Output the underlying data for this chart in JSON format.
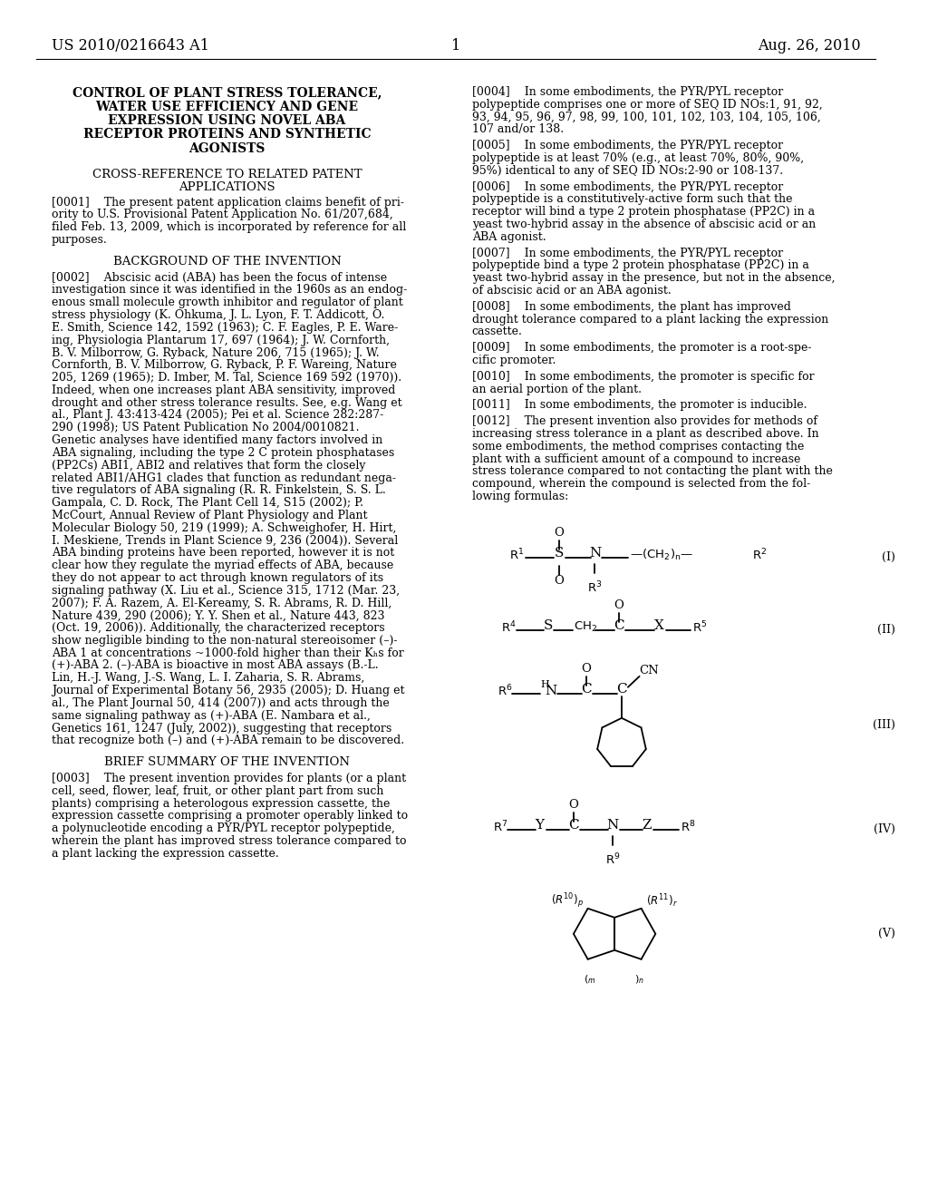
{
  "bg_color": "#ffffff",
  "page_number": "1",
  "header_left": "US 2010/0216643 A1",
  "header_right": "Aug. 26, 2010",
  "title_line1": "CONTROL OF PLANT STRESS TOLERANCE,",
  "title_line2": "WATER USE EFFICIENCY AND GENE",
  "title_line3": "EXPRESSION USING NOVEL ABA",
  "title_line4": "RECEPTOR PROTEINS AND SYNTHETIC",
  "title_line5": "AGONISTS",
  "section1_line1": "CROSS-REFERENCE TO RELATED PATENT",
  "section1_line2": "APPLICATIONS",
  "para0001": "[0001]    The present patent application claims benefit of pri-\nority to U.S. Provisional Patent Application No. 61/207,684,\nfiled Feb. 13, 2009, which is incorporated by reference for all\npurposes.",
  "section2": "BACKGROUND OF THE INVENTION",
  "para0002_line1": "[0002]    Abscisic acid (ABA) has been the focus of intense",
  "para0002_line2": "investigation since it was identified in the 1960s as an endog-",
  "para0002_line3": "enous small molecule growth inhibitor and regulator of plant",
  "para0002_line4": "stress physiology (K. Ohkuma, J. L. Lyon, F. T. Addicott, O.",
  "para0002_line5": "E. Smith, Science 142, 1592 (1963); C. F. Eagles, P. E. Ware-",
  "para0002_line6": "ing, Physiologia Plantarum 17, 697 (1964); J. W. Cornforth,",
  "para0002_line7": "B. V. Milborrow, G. Ryback, Nature 206, 715 (1965); J. W.",
  "para0002_line8": "Cornforth, B. V. Milborrow, G. Ryback, P. F. Wareing, Nature",
  "para0002_line9": "205, 1269 (1965); D. Imber, M. Tal, Science 169 592 (1970)).",
  "para0002_line10": "Indeed, when one increases plant ABA sensitivity, improved",
  "para0002_line11": "drought and other stress tolerance results. See, e.g. Wang et",
  "para0002_line12": "al., Plant J. 43:413-424 (2005); Pei et al. Science 282:287-",
  "para0002_line13": "290 (1998); US Patent Publication No 2004/0010821.",
  "para0002_line14": "Genetic analyses have identified many factors involved in",
  "para0002_line15": "ABA signaling, including the type 2 C protein phosphatases",
  "para0002_line16": "(PP2Cs) ABI1, ABI2 and relatives that form the closely",
  "para0002_line17": "related ABI1/AHG1 clades that function as redundant nega-",
  "para0002_line18": "tive regulators of ABA signaling (R. R. Finkelstein, S. S. L.",
  "para0002_line19": "Gampala, C. D. Rock, The Plant Cell 14, S15 (2002); P.",
  "para0002_line20": "McCourt, Annual Review of Plant Physiology and Plant",
  "para0002_line21": "Molecular Biology 50, 219 (1999); A. Schweighofer, H. Hirt,",
  "para0002_line22": "I. Meskiene, Trends in Plant Science 9, 236 (2004)). Several",
  "para0002_line23": "ABA binding proteins have been reported, however it is not",
  "para0002_line24": "clear how they regulate the myriad effects of ABA, because",
  "para0002_line25": "they do not appear to act through known regulators of its",
  "para0002_line26": "signaling pathway (X. Liu et al., Science 315, 1712 (Mar. 23,",
  "para0002_line27": "2007); F. A. Razem, A. El-Kereamy, S. R. Abrams, R. D. Hill,",
  "para0002_line28": "Nature 439, 290 (2006); Y. Y. Shen et al., Nature 443, 823",
  "para0002_line29": "(Oct. 19, 2006)). Additionally, the characterized receptors",
  "para0002_line30": "show negligible binding to the non-natural stereoisomer (–)-",
  "para0002_line31": "ABA 1 at concentrations ~1000-fold higher than their Kₕs for",
  "para0002_line32": "(+)-ABA 2. (–)-ABA is bioactive in most ABA assays (B.-L.",
  "para0002_line33": "Lin, H.-J. Wang, J.-S. Wang, L. I. Zaharia, S. R. Abrams,",
  "para0002_line34": "Journal of Experimental Botany 56, 2935 (2005); D. Huang et",
  "para0002_line35": "al., The Plant Journal 50, 414 (2007)) and acts through the",
  "para0002_line36": "same signaling pathway as (+)-ABA (E. Nambara et al.,",
  "para0002_line37": "Genetics 161, 1247 (July, 2002)), suggesting that receptors",
  "para0002_line38": "that recognize both (–) and (+)-ABA remain to be discovered.",
  "section3": "BRIEF SUMMARY OF THE INVENTION",
  "para0003_line1": "[0003]    The present invention provides for plants (or a plant",
  "para0003_line2": "cell, seed, flower, leaf, fruit, or other plant part from such",
  "para0003_line3": "plants) comprising a heterologous expression cassette, the",
  "para0003_line4": "expression cassette comprising a promoter operably linked to",
  "para0003_line5": "a polynucleotide encoding a PYR/PYL receptor polypeptide,",
  "para0003_line6": "wherein the plant has improved stress tolerance compared to",
  "para0003_line7": "a plant lacking the expression cassette.",
  "para0004_line1": "[0004]    In some embodiments, the PYR/PYL receptor",
  "para0004_line2": "polypeptide comprises one or more of SEQ ID NOs:1, 91, 92,",
  "para0004_line3": "93, 94, 95, 96, 97, 98, 99, 100, 101, 102, 103, 104, 105, 106,",
  "para0004_line4": "107 and/or 138.",
  "para0005_line1": "[0005]    In some embodiments, the PYR/PYL receptor",
  "para0005_line2": "polypeptide is at least 70% (e.g., at least 70%, 80%, 90%,",
  "para0005_line3": "95%) identical to any of SEQ ID NOs:2-90 or 108-137.",
  "para0006_line1": "[0006]    In some embodiments, the PYR/PYL receptor",
  "para0006_line2": "polypeptide is a constitutively-active form such that the",
  "para0006_line3": "receptor will bind a type 2 protein phosphatase (PP2C) in a",
  "para0006_line4": "yeast two-hybrid assay in the absence of abscisic acid or an",
  "para0006_line5": "ABA agonist.",
  "para0007_line1": "[0007]    In some embodiments, the PYR/PYL receptor",
  "para0007_line2": "polypeptide bind a type 2 protein phosphatase (PP2C) in a",
  "para0007_line3": "yeast two-hybrid assay in the presence, but not in the absence,",
  "para0007_line4": "of abscisic acid or an ABA agonist.",
  "para0008_line1": "[0008]    In some embodiments, the plant has improved",
  "para0008_line2": "drought tolerance compared to a plant lacking the expression",
  "para0008_line3": "cassette.",
  "para0009_line1": "[0009]    In some embodiments, the promoter is a root-spe-",
  "para0009_line2": "cific promoter.",
  "para0010_line1": "[0010]    In some embodiments, the promoter is specific for",
  "para0010_line2": "an aerial portion of the plant.",
  "para0011_line1": "[0011]    In some embodiments, the promoter is inducible.",
  "para0012_line1": "[0012]    The present invention also provides for methods of",
  "para0012_line2": "increasing stress tolerance in a plant as described above. In",
  "para0012_line3": "some embodiments, the method comprises contacting the",
  "para0012_line4": "plant with a sufficient amount of a compound to increase",
  "para0012_line5": "stress tolerance compared to not contacting the plant with the",
  "para0012_line6": "compound, wherein the compound is selected from the fol-",
  "para0012_line7": "lowing formulas:"
}
